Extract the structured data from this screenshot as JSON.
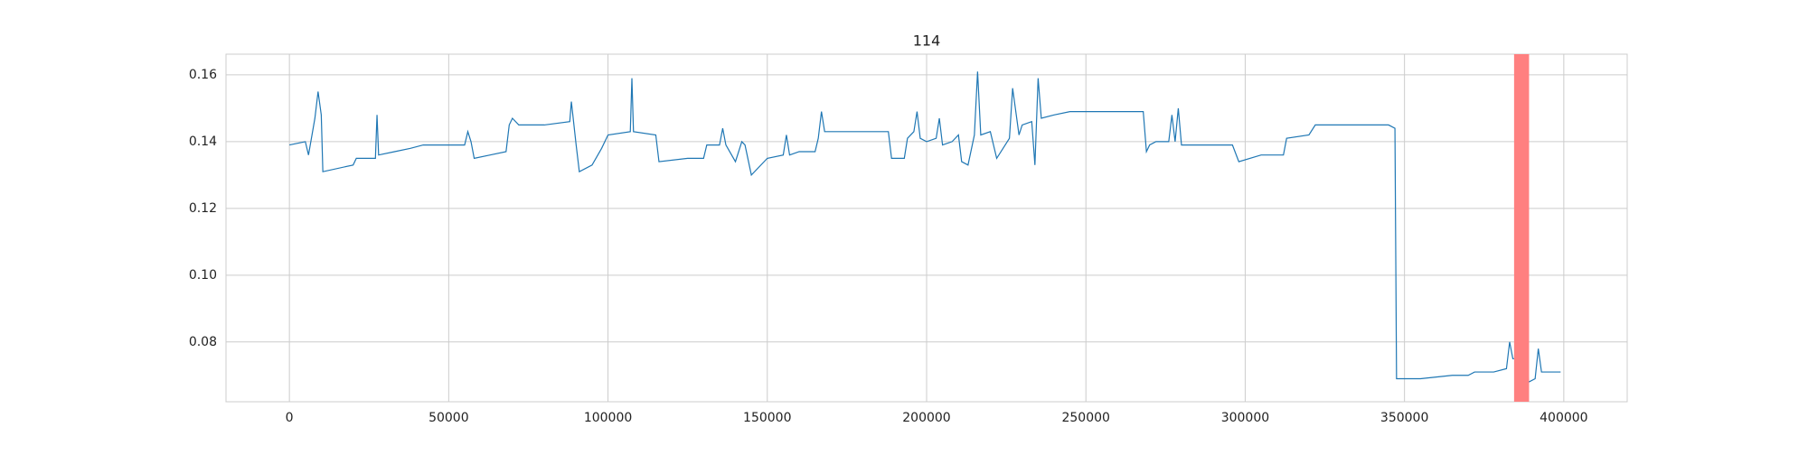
{
  "chart_data": {
    "type": "line",
    "title": "114",
    "x": [
      0,
      5000,
      6000,
      8000,
      9000,
      10000,
      10500,
      20000,
      21000,
      27000,
      27500,
      28000,
      33000,
      38000,
      42000,
      55000,
      56000,
      57000,
      58000,
      63000,
      68000,
      69000,
      70000,
      72000,
      80000,
      88000,
      88500,
      90000,
      91000,
      95000,
      98000,
      100000,
      107000,
      107500,
      108000,
      115000,
      116000,
      125000,
      130000,
      131000,
      135000,
      136000,
      137000,
      140000,
      142000,
      143000,
      145000,
      150000,
      155000,
      156000,
      157000,
      160000,
      165000,
      166000,
      167000,
      168000,
      188000,
      189000,
      193000,
      194000,
      196000,
      197000,
      198000,
      200000,
      203000,
      204000,
      205000,
      208000,
      210000,
      211000,
      213000,
      215000,
      216000,
      217000,
      220000,
      222000,
      224000,
      226000,
      227000,
      229000,
      230000,
      233000,
      234000,
      235000,
      236000,
      240000,
      245000,
      255000,
      268000,
      269000,
      270000,
      272000,
      276000,
      277000,
      278000,
      279000,
      280000,
      290000,
      296000,
      298000,
      305000,
      312000,
      313000,
      320000,
      322000,
      325000,
      345000,
      347000,
      347500,
      355000,
      365000,
      370000,
      372000,
      378000,
      382000,
      383000,
      384000,
      388000,
      389000,
      391000,
      392000,
      393000,
      399000
    ],
    "series": [
      {
        "color": "#1f77b4",
        "values": [
          0.139,
          0.14,
          0.136,
          0.147,
          0.155,
          0.148,
          0.131,
          0.133,
          0.135,
          0.135,
          0.148,
          0.136,
          0.137,
          0.138,
          0.139,
          0.139,
          0.143,
          0.14,
          0.135,
          0.136,
          0.137,
          0.145,
          0.147,
          0.145,
          0.145,
          0.146,
          0.152,
          0.139,
          0.131,
          0.133,
          0.138,
          0.142,
          0.143,
          0.159,
          0.143,
          0.142,
          0.134,
          0.135,
          0.135,
          0.139,
          0.139,
          0.144,
          0.139,
          0.134,
          0.14,
          0.139,
          0.13,
          0.135,
          0.136,
          0.142,
          0.136,
          0.137,
          0.137,
          0.141,
          0.149,
          0.143,
          0.143,
          0.135,
          0.135,
          0.141,
          0.143,
          0.149,
          0.141,
          0.14,
          0.141,
          0.147,
          0.139,
          0.14,
          0.142,
          0.134,
          0.133,
          0.142,
          0.161,
          0.142,
          0.143,
          0.135,
          0.138,
          0.141,
          0.156,
          0.142,
          0.145,
          0.146,
          0.133,
          0.159,
          0.147,
          0.148,
          0.149,
          0.149,
          0.149,
          0.137,
          0.139,
          0.14,
          0.14,
          0.148,
          0.14,
          0.15,
          0.139,
          0.139,
          0.139,
          0.134,
          0.136,
          0.136,
          0.141,
          0.142,
          0.145,
          0.145,
          0.145,
          0.144,
          0.069,
          0.069,
          0.07,
          0.07,
          0.071,
          0.071,
          0.072,
          0.08,
          0.075,
          0.075,
          0.068,
          0.069,
          0.078,
          0.071,
          0.071
        ]
      }
    ],
    "highlight": {
      "x": [
        384400,
        389100
      ],
      "color": "#ff8080"
    },
    "xlim": [
      -19900,
      419900
    ],
    "ylim": [
      0.0621,
      0.1662
    ],
    "xticks": [
      0,
      50000,
      100000,
      150000,
      200000,
      250000,
      300000,
      350000,
      400000
    ],
    "yticks": [
      0.08,
      {
        "value": 0.1,
        "label": "0.10"
      },
      0.12,
      0.14,
      0.16
    ],
    "grid": true
  }
}
